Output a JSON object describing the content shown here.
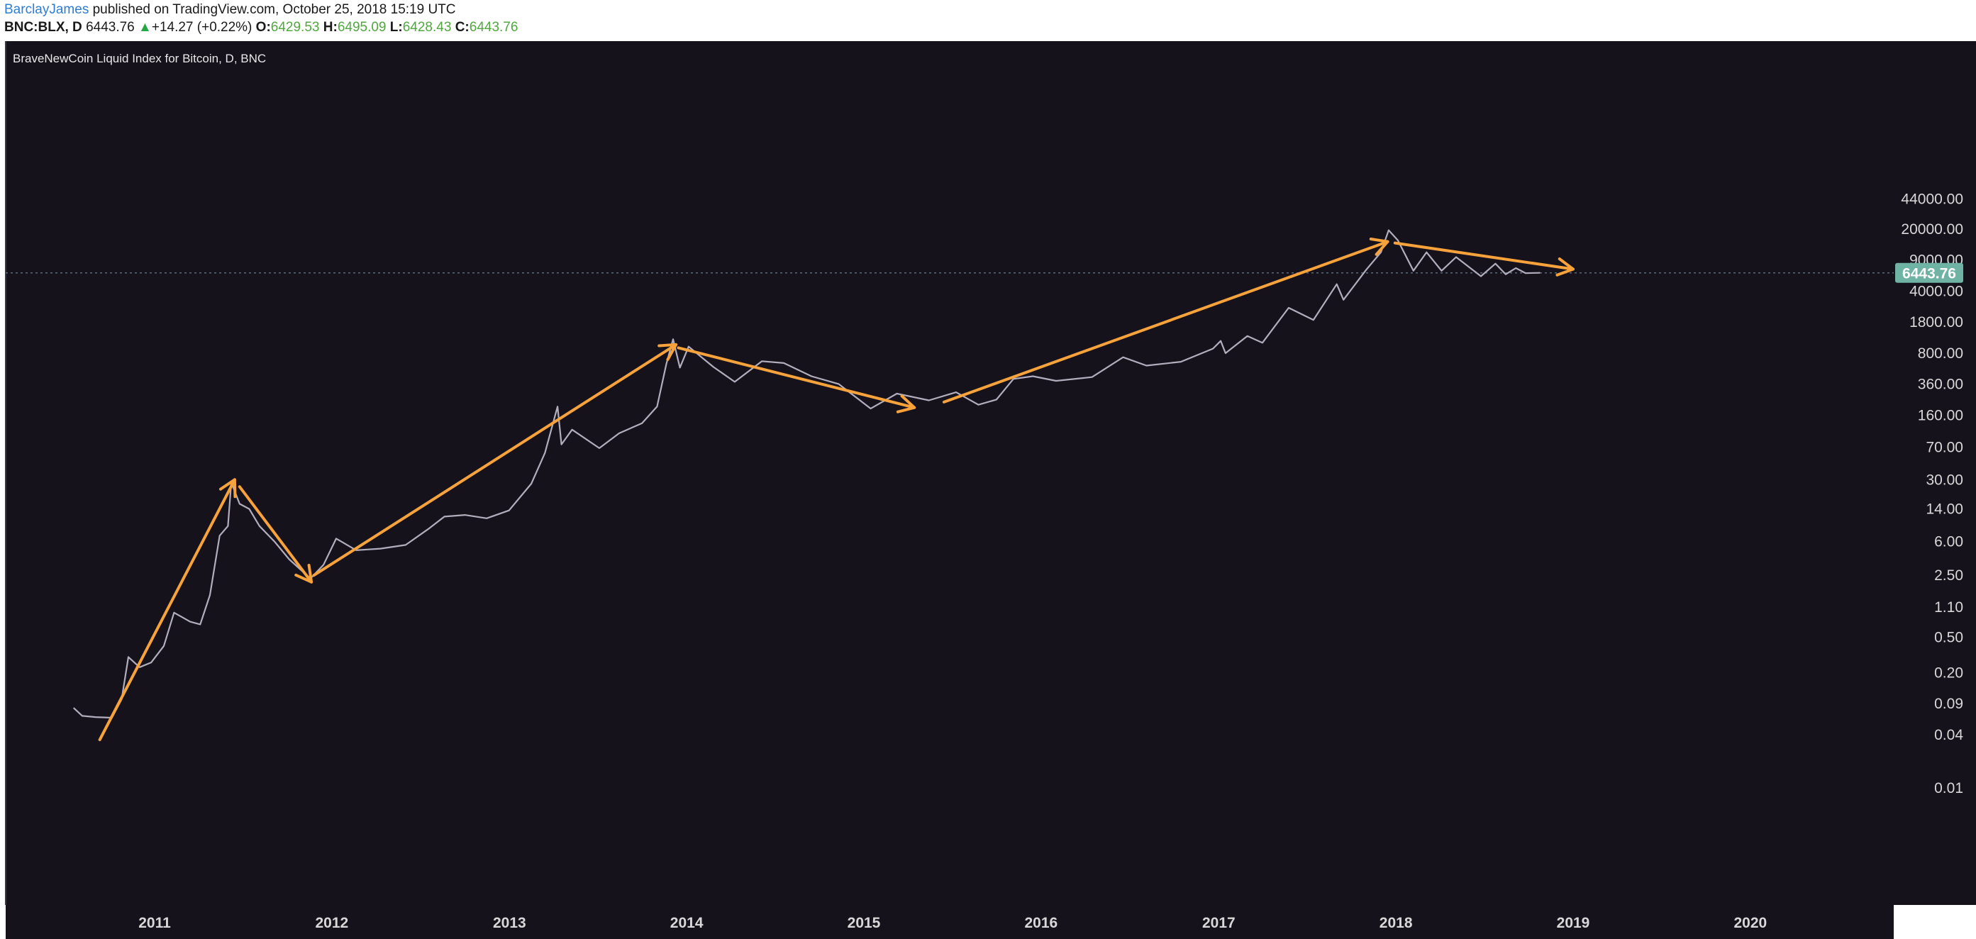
{
  "header": {
    "author": "BarclayJames",
    "published_text": " published on TradingView.com, October 25, 2018 15:19 UTC",
    "symbol": "BNC:BLX, D",
    "last": "6443.76",
    "up_glyph": "▲",
    "change": "+14.27 (+0.22%)",
    "o_label": "O:",
    "o_value": "6429.53",
    "h_label": "H:",
    "h_value": "6495.09",
    "l_label": "L:",
    "l_value": "6428.43",
    "c_label": "C:",
    "c_value": "6443.76"
  },
  "chart_data": {
    "type": "line",
    "title": "BraveNewCoin Liquid Index for Bitcoin, D, BNC",
    "y_scale": "log",
    "colors": {
      "background": "#15121c",
      "price": "#b2aebe",
      "trend": "#f7a23b",
      "last_price_bg": "#6fb3a4",
      "axis_text": "#d8d8d8",
      "grid_dot": "#5a6a78"
    },
    "x_ticks": [
      "2011",
      "2012",
      "2013",
      "2014",
      "2015",
      "2016",
      "2017",
      "2018",
      "2019",
      "2020"
    ],
    "y_ticks": [
      {
        "value": 0.01,
        "label": "0.01"
      },
      {
        "value": 0.04,
        "label": "0.04"
      },
      {
        "value": 0.09,
        "label": "0.09"
      },
      {
        "value": 0.2,
        "label": "0.20"
      },
      {
        "value": 0.5,
        "label": "0.50"
      },
      {
        "value": 1.1,
        "label": "1.10"
      },
      {
        "value": 2.5,
        "label": "2.50"
      },
      {
        "value": 6,
        "label": "6.00"
      },
      {
        "value": 14,
        "label": "14.00"
      },
      {
        "value": 30,
        "label": "30.00"
      },
      {
        "value": 70,
        "label": "70.00"
      },
      {
        "value": 160,
        "label": "160.00"
      },
      {
        "value": 360,
        "label": "360.00"
      },
      {
        "value": 800,
        "label": "800.00"
      },
      {
        "value": 1800,
        "label": "1800.00"
      },
      {
        "value": 4000,
        "label": "4000.00"
      },
      {
        "value": 9000,
        "label": "9000.00"
      },
      {
        "value": 20000,
        "label": "20000.00"
      },
      {
        "value": 44000,
        "label": "44000.00"
      }
    ],
    "last_price": {
      "value": 6443.76,
      "label": "6443.76"
    },
    "series": [
      {
        "values": [
          {
            "x": "2010-07-18",
            "y": 0.08
          },
          {
            "x": "2010-08-05",
            "y": 0.065
          },
          {
            "x": "2010-09-01",
            "y": 0.063
          },
          {
            "x": "2010-10-05",
            "y": 0.062
          },
          {
            "x": "2010-10-25",
            "y": 0.1
          },
          {
            "x": "2010-11-08",
            "y": 0.3
          },
          {
            "x": "2010-12-01",
            "y": 0.23
          },
          {
            "x": "2010-12-25",
            "y": 0.26
          },
          {
            "x": "2011-01-20",
            "y": 0.4
          },
          {
            "x": "2011-02-10",
            "y": 0.95
          },
          {
            "x": "2011-03-15",
            "y": 0.75
          },
          {
            "x": "2011-04-05",
            "y": 0.7
          },
          {
            "x": "2011-04-25",
            "y": 1.5
          },
          {
            "x": "2011-05-15",
            "y": 7
          },
          {
            "x": "2011-06-01",
            "y": 9
          },
          {
            "x": "2011-06-08",
            "y": 28
          },
          {
            "x": "2011-06-25",
            "y": 16
          },
          {
            "x": "2011-07-15",
            "y": 14
          },
          {
            "x": "2011-08-05",
            "y": 9
          },
          {
            "x": "2011-09-05",
            "y": 6
          },
          {
            "x": "2011-10-05",
            "y": 3.8
          },
          {
            "x": "2011-11-18",
            "y": 2.3
          },
          {
            "x": "2011-12-15",
            "y": 3.3
          },
          {
            "x": "2012-01-10",
            "y": 6.5
          },
          {
            "x": "2012-02-20",
            "y": 4.8
          },
          {
            "x": "2012-04-10",
            "y": 5
          },
          {
            "x": "2012-06-01",
            "y": 5.5
          },
          {
            "x": "2012-07-20",
            "y": 8.5
          },
          {
            "x": "2012-08-20",
            "y": 11.5
          },
          {
            "x": "2012-10-01",
            "y": 12
          },
          {
            "x": "2012-11-15",
            "y": 11
          },
          {
            "x": "2012-12-31",
            "y": 13.5
          },
          {
            "x": "2013-02-15",
            "y": 27
          },
          {
            "x": "2013-03-15",
            "y": 60
          },
          {
            "x": "2013-04-10",
            "y": 200
          },
          {
            "x": "2013-04-18",
            "y": 75
          },
          {
            "x": "2013-05-10",
            "y": 110
          },
          {
            "x": "2013-07-05",
            "y": 68
          },
          {
            "x": "2013-08-15",
            "y": 100
          },
          {
            "x": "2013-10-01",
            "y": 130
          },
          {
            "x": "2013-11-01",
            "y": 200
          },
          {
            "x": "2013-11-20",
            "y": 600
          },
          {
            "x": "2013-12-04",
            "y": 1150
          },
          {
            "x": "2013-12-18",
            "y": 550
          },
          {
            "x": "2014-01-05",
            "y": 950
          },
          {
            "x": "2014-02-25",
            "y": 560
          },
          {
            "x": "2014-04-10",
            "y": 380
          },
          {
            "x": "2014-06-05",
            "y": 650
          },
          {
            "x": "2014-07-20",
            "y": 620
          },
          {
            "x": "2014-09-15",
            "y": 440
          },
          {
            "x": "2014-11-10",
            "y": 360
          },
          {
            "x": "2015-01-15",
            "y": 190
          },
          {
            "x": "2015-03-10",
            "y": 280
          },
          {
            "x": "2015-05-15",
            "y": 235
          },
          {
            "x": "2015-07-10",
            "y": 290
          },
          {
            "x": "2015-08-25",
            "y": 210
          },
          {
            "x": "2015-10-01",
            "y": 240
          },
          {
            "x": "2015-11-05",
            "y": 410
          },
          {
            "x": "2015-12-15",
            "y": 440
          },
          {
            "x": "2016-02-01",
            "y": 390
          },
          {
            "x": "2016-04-15",
            "y": 430
          },
          {
            "x": "2016-06-18",
            "y": 720
          },
          {
            "x": "2016-08-05",
            "y": 580
          },
          {
            "x": "2016-10-15",
            "y": 640
          },
          {
            "x": "2016-12-20",
            "y": 900
          },
          {
            "x": "2017-01-05",
            "y": 1100
          },
          {
            "x": "2017-01-15",
            "y": 800
          },
          {
            "x": "2017-03-01",
            "y": 1250
          },
          {
            "x": "2017-04-01",
            "y": 1050
          },
          {
            "x": "2017-05-25",
            "y": 2600
          },
          {
            "x": "2017-07-15",
            "y": 1900
          },
          {
            "x": "2017-09-01",
            "y": 4800
          },
          {
            "x": "2017-09-15",
            "y": 3200
          },
          {
            "x": "2017-11-01",
            "y": 7000
          },
          {
            "x": "2017-12-01",
            "y": 11000
          },
          {
            "x": "2017-12-17",
            "y": 19500
          },
          {
            "x": "2018-01-05",
            "y": 15000
          },
          {
            "x": "2018-02-06",
            "y": 6800
          },
          {
            "x": "2018-03-05",
            "y": 11000
          },
          {
            "x": "2018-04-05",
            "y": 6800
          },
          {
            "x": "2018-05-05",
            "y": 9700
          },
          {
            "x": "2018-06-25",
            "y": 5900
          },
          {
            "x": "2018-07-25",
            "y": 8200
          },
          {
            "x": "2018-08-15",
            "y": 6200
          },
          {
            "x": "2018-09-05",
            "y": 7300
          },
          {
            "x": "2018-09-25",
            "y": 6400
          },
          {
            "x": "2018-10-25",
            "y": 6443.76
          }
        ]
      }
    ],
    "annotations": [
      {
        "type": "arrow",
        "from": {
          "x": "2010-09-10",
          "y": 0.035
        },
        "to": {
          "x": "2011-06-15",
          "y": 30
        }
      },
      {
        "type": "arrow",
        "from": {
          "x": "2011-06-25",
          "y": 25
        },
        "to": {
          "x": "2011-11-20",
          "y": 2.1
        }
      },
      {
        "type": "arrow",
        "from": {
          "x": "2011-11-25",
          "y": 2.5
        },
        "to": {
          "x": "2013-12-10",
          "y": 1000
        }
      },
      {
        "type": "arrow",
        "from": {
          "x": "2013-12-15",
          "y": 920
        },
        "to": {
          "x": "2015-04-15",
          "y": 195
        }
      },
      {
        "type": "arrow",
        "from": {
          "x": "2015-06-15",
          "y": 225
        },
        "to": {
          "x": "2017-12-15",
          "y": 14500
        }
      },
      {
        "type": "arrow",
        "from": {
          "x": "2017-12-30",
          "y": 14000
        },
        "to": {
          "x": "2019-01-01",
          "y": 7100
        }
      }
    ]
  }
}
